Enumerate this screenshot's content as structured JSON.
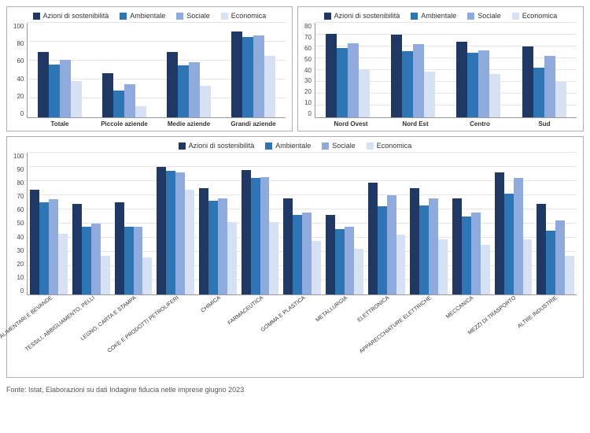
{
  "series_labels": [
    "Azioni di sostenibilità",
    "Ambientale",
    "Sociale",
    "Economica"
  ],
  "colors": [
    "#1f3864",
    "#2e75b6",
    "#8faadc",
    "#d6e2f3"
  ],
  "grid_color": "#e6e6e6",
  "axis_color": "#999999",
  "border_color": "#b0b0b0",
  "label_fontsize": 8,
  "legend_fontsize": 9,
  "panelA": {
    "type": "bar",
    "ylim": [
      0,
      100
    ],
    "ytick_step": 20,
    "categories": [
      "Totale",
      "Piccole aziende",
      "Medie aziende",
      "Grandi aziende"
    ],
    "data": [
      [
        69,
        56,
        61,
        38
      ],
      [
        47,
        28,
        35,
        12
      ],
      [
        69,
        55,
        58,
        33
      ],
      [
        91,
        85,
        87,
        65
      ]
    ]
  },
  "panelB": {
    "type": "bar",
    "ylim": [
      0,
      80
    ],
    "ytick_step": 10,
    "categories": [
      "Nord Ovest",
      "Nord Est",
      "Centro",
      "Sud"
    ],
    "data": [
      [
        71,
        59,
        63,
        41
      ],
      [
        70,
        56,
        62,
        39
      ],
      [
        64,
        55,
        57,
        37
      ],
      [
        60,
        42,
        52,
        30
      ]
    ]
  },
  "panelC": {
    "type": "bar",
    "ylim": [
      0,
      100
    ],
    "ytick_step": 10,
    "categories": [
      "ALIMENTARI E BEVANDE",
      "TESSILI, ABBIGLIAMENTO, PELLI",
      "LEGNO, CARTA E STAMPA",
      "COKE E PRODOTTI PETROLIFERI",
      "CHIMICA",
      "FARMACEUTICA",
      "GOMMA E PLASTICA",
      "METALLURGIA",
      "ELETTRONICA",
      "APPARECCHIATURE ELETTRICHE",
      "MECCANICA",
      "MEZZI DI TRASPORTO",
      "ALTRE INDUSTRIE"
    ],
    "data": [
      [
        74,
        65,
        67,
        43
      ],
      [
        64,
        48,
        50,
        27
      ],
      [
        65,
        48,
        48,
        26
      ],
      [
        90,
        87,
        86,
        74
      ],
      [
        75,
        66,
        68,
        51
      ],
      [
        88,
        82,
        83,
        51
      ],
      [
        68,
        56,
        58,
        38
      ],
      [
        56,
        46,
        48,
        32
      ],
      [
        79,
        62,
        70,
        42
      ],
      [
        75,
        63,
        68,
        39
      ],
      [
        68,
        55,
        58,
        35
      ],
      [
        86,
        71,
        82,
        39
      ],
      [
        64,
        45,
        52,
        27
      ]
    ]
  },
  "footnote": "Fonte: Istat, Elaborazioni su dati Indagine fiducia nelle imprese giugno 2023"
}
